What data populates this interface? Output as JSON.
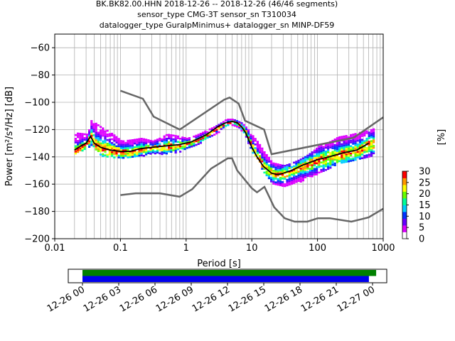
{
  "title_lines": [
    "BK.BK82.00.HHN   2018-12-26 -- 2018-12-26  (46/46 segments)",
    "sensor_type CMG-3T sensor_sn T310034",
    "datalogger_type GuralpMinimus+ datalogger_sn MINP-DF59"
  ],
  "chart_data": [
    {
      "type": "heatmap",
      "title": "BK.BK82.00.HHN   2018-12-26 -- 2018-12-26  (46/46 segments)",
      "xlabel": "Period [s]",
      "ylabel": "Power [m²/s⁴/Hz] [dB]",
      "xscale": "log",
      "xlim": [
        0.01,
        1000
      ],
      "ylim": [
        -200,
        -50
      ],
      "xticks": [
        {
          "value": 0.01,
          "label": "0.01"
        },
        {
          "value": 0.1,
          "label": "0.1"
        },
        {
          "value": 1,
          "label": "1"
        },
        {
          "value": 10,
          "label": "10"
        },
        {
          "value": 100,
          "label": "100"
        },
        {
          "value": 1000,
          "label": "1000"
        }
      ],
      "yticks": [
        -60,
        -80,
        -100,
        -120,
        -140,
        -160,
        -180,
        -200
      ],
      "grid": true,
      "colorbar": {
        "label": "[%]",
        "ticks": [
          0,
          5,
          10,
          15,
          20,
          25,
          30
        ],
        "range": [
          0,
          30
        ],
        "colors": [
          "#ffffff",
          "#dd00ff",
          "#6600ff",
          "#0033ff",
          "#00ccff",
          "#00ff99",
          "#66ff00",
          "#ffff00",
          "#ff9900",
          "#ff0000"
        ]
      },
      "series": [
        {
          "name": "",
          "role": "mean",
          "color": "#000000",
          "period": [
            0.02,
            0.025,
            0.03,
            0.035,
            0.04,
            0.05,
            0.07,
            0.1,
            0.14,
            0.2,
            0.3,
            0.5,
            0.8,
            1.2,
            2,
            3,
            4,
            5,
            6,
            7,
            8,
            10,
            12,
            15,
            20,
            25,
            30,
            40,
            60,
            100,
            150,
            250,
            400,
            600
          ],
          "power": [
            -135,
            -132,
            -130,
            -125,
            -130,
            -133,
            -135,
            -136,
            -136,
            -134,
            -133,
            -132,
            -131,
            -129,
            -124,
            -118,
            -115,
            -114,
            -115,
            -118,
            -122,
            -133,
            -140,
            -147,
            -152,
            -153,
            -152,
            -150,
            -146,
            -142,
            -140,
            -137,
            -135,
            -130
          ]
        },
        {
          "name": "",
          "role": "noise-model-high",
          "color": "#666666",
          "period": [
            0.1,
            0.22,
            0.32,
            0.8,
            3.8,
            4.6,
            6.3,
            7.9,
            15.4,
            20,
            354.8,
            1000
          ],
          "power": [
            -91.5,
            -97.4,
            -110.5,
            -120,
            -98,
            -96.5,
            -101,
            -113.5,
            -120,
            -138,
            -126,
            -111
          ]
        },
        {
          "name": "",
          "role": "noise-model-low",
          "color": "#666666",
          "period": [
            0.1,
            0.17,
            0.4,
            0.8,
            1.24,
            2.4,
            4.3,
            5,
            6,
            10,
            12,
            15.6,
            21.9,
            31.6,
            45,
            70,
            101,
            154,
            328,
            600,
            1000
          ],
          "power": [
            -168,
            -166.7,
            -166.7,
            -169.2,
            -163.7,
            -148.6,
            -141.1,
            -141.1,
            -150,
            -163,
            -166,
            -162,
            -177,
            -185,
            -187.5,
            -187.5,
            -185,
            -185,
            -187.5,
            -184.4,
            -178
          ]
        }
      ],
      "density_envelope": {
        "period": [
          0.02,
          0.03,
          0.035,
          0.05,
          0.1,
          0.2,
          0.3,
          0.5,
          1,
          2,
          4,
          5,
          7,
          10,
          15,
          20,
          30,
          50,
          100,
          200,
          400,
          700
        ],
        "upper_db": [
          -122,
          -123,
          -113,
          -118,
          -128,
          -126,
          -128,
          -123,
          -126,
          -120,
          -112,
          -112,
          -115,
          -124,
          -136,
          -144,
          -146,
          -142,
          -132,
          -125,
          -122,
          -119
        ],
        "lower_db": [
          -137,
          -133,
          -132,
          -139,
          -141,
          -139,
          -137,
          -138,
          -134,
          -126,
          -117,
          -116,
          -121,
          -137,
          -152,
          -159,
          -161,
          -158,
          -152,
          -145,
          -142,
          -138
        ]
      }
    },
    {
      "type": "timeline",
      "xticks": [
        "12-26 00",
        "12-26 03",
        "12-26 06",
        "12-26 09",
        "12-26 12",
        "12-26 15",
        "12-26 18",
        "12-26 21",
        "12-27 00"
      ],
      "bars": [
        {
          "name": "",
          "color": "#008000",
          "start_hour": 0,
          "end_hour": 24.3
        },
        {
          "name": "",
          "color": "#0000ee",
          "start_hour": 0,
          "end_hour": 23.7
        }
      ]
    }
  ]
}
